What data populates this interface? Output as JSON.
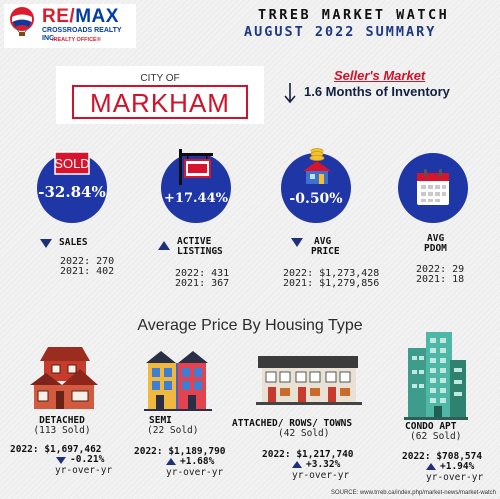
{
  "logo": {
    "brand_re": "RE/",
    "brand_max": "MAX",
    "office": "CROSSROADS REALTY INC.",
    "tagline": "BROKERAGE",
    "sub": "iREALTY OFFICE®"
  },
  "header": {
    "title": "TRREB MARKET WATCH",
    "subtitle": "AUGUST 2022 SUMMARY"
  },
  "city": {
    "prefix": "CITY OF",
    "name": "MARKHAM"
  },
  "market": {
    "status": "Seller's Market",
    "inventory": "1.6 Months of Inventory"
  },
  "stats": {
    "sales": {
      "label": "SALES",
      "change": "-32.84%",
      "trend": "down",
      "y2022": "2022: 270",
      "y2021": "2021: 402",
      "icon": "sold-sign-icon",
      "sign_text": "SOLD"
    },
    "listings": {
      "label_line1": "ACTIVE",
      "label_line2": "LISTINGS",
      "change": "+17.44%",
      "trend": "up",
      "y2022": "2022: 431",
      "y2021": "2021: 367",
      "icon": "for-sale-sign-icon"
    },
    "price": {
      "label_line1": "AVG",
      "label_line2": "PRICE",
      "change": "-0.50%",
      "trend": "down",
      "y2022": "2022: $1,273,428",
      "y2021": "2021: $1,279,856",
      "icon": "house-coins-icon"
    },
    "pdom": {
      "label_line1": "AVG",
      "label_line2": "PDOM",
      "y2022": "2022: 29",
      "y2021": "2021: 18",
      "icon": "calendar-icon"
    }
  },
  "housing": {
    "heading": "Average Price By Housing Type",
    "types": [
      {
        "name": "DETACHED",
        "sold": "(113 Sold)",
        "price": "2022: $1,697,462",
        "change": "-0.21%",
        "trend": "down",
        "yoy": "yr-over-yr",
        "icon": "detached-house-icon"
      },
      {
        "name": "SEMI",
        "sold": "(22 Sold)",
        "price": "2022: $1,189,790",
        "change": "+1.68%",
        "trend": "up",
        "yoy": "yr-over-yr",
        "icon": "semi-house-icon"
      },
      {
        "name": "ATTACHED/ ROWS/ TOWNS",
        "sold": "(42 Sold)",
        "price": "2022: $1,217,740",
        "change": "+3.32%",
        "trend": "up",
        "yoy": "yr-over-yr",
        "icon": "townhouse-icon"
      },
      {
        "name": "CONDO APT",
        "sold": "(62 Sold)",
        "price": "2022: $708,574",
        "change": "+1.94%",
        "trend": "up",
        "yoy": "yr-over-yr",
        "icon": "condo-tower-icon"
      }
    ]
  },
  "source": "SOURCE: www.trreb.ca/index.php/market-news/market-watch",
  "colors": {
    "accent_blue": "#1f36a6",
    "accent_red": "#d0132b",
    "dark_navy": "#1e3a82"
  }
}
